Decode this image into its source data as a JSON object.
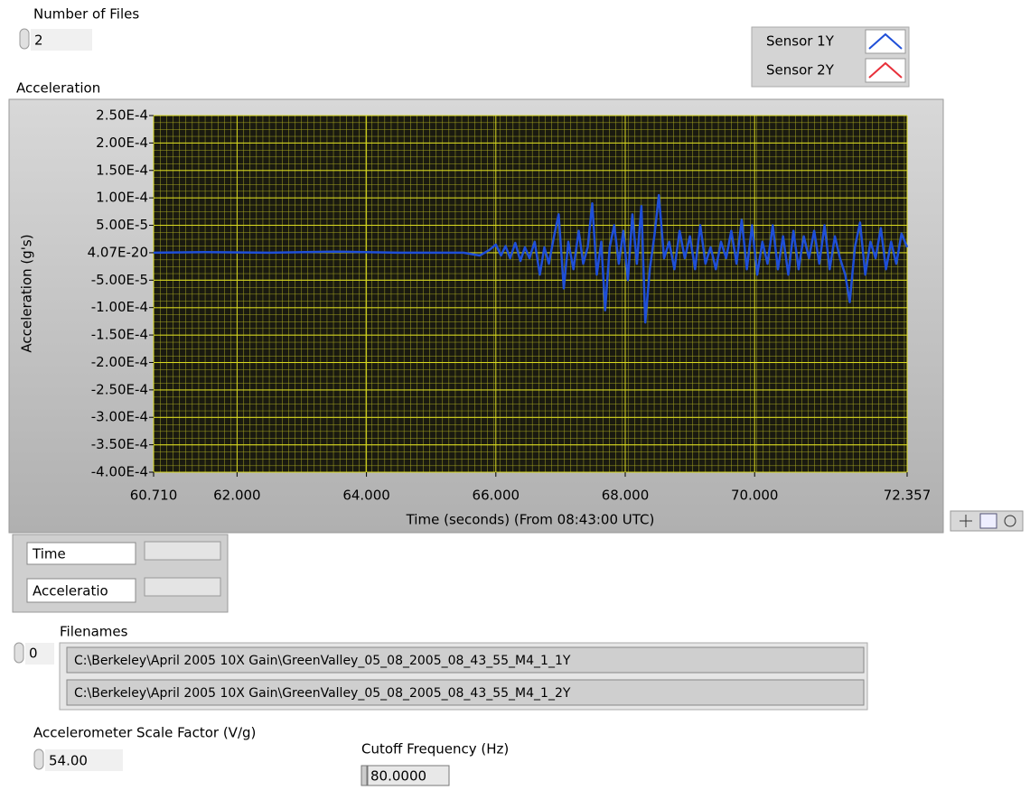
{
  "number_of_files": {
    "label": "Number of Files",
    "value": "2"
  },
  "chart_data": {
    "type": "line",
    "title": "Acceleration",
    "x_label": "Time (seconds) (From 08:43:00 UTC)",
    "y_label": "Acceleration (g's)",
    "xlim": [
      60.71,
      72.357
    ],
    "ylim": [
      -0.0004,
      0.00025
    ],
    "xticks": [
      {
        "value": 60.71,
        "label": "60.710"
      },
      {
        "value": 62,
        "label": "62.000"
      },
      {
        "value": 64,
        "label": "64.000"
      },
      {
        "value": 66,
        "label": "66.000"
      },
      {
        "value": 68,
        "label": "68.000"
      },
      {
        "value": 70,
        "label": "70.000"
      },
      {
        "value": 72.357,
        "label": "72.357"
      }
    ],
    "yticks": [
      {
        "value": 0.00025,
        "label": "2.50E-4"
      },
      {
        "value": 0.0002,
        "label": "2.00E-4"
      },
      {
        "value": 0.00015,
        "label": "1.50E-4"
      },
      {
        "value": 0.0001,
        "label": "1.00E-4"
      },
      {
        "value": 5e-05,
        "label": "5.00E-5"
      },
      {
        "value": 4.07e-20,
        "label": "4.07E-20"
      },
      {
        "value": -5e-05,
        "label": "-5.00E-5"
      },
      {
        "value": -0.0001,
        "label": "-1.00E-4"
      },
      {
        "value": -0.00015,
        "label": "-1.50E-4"
      },
      {
        "value": -0.0002,
        "label": "-2.00E-4"
      },
      {
        "value": -0.00025,
        "label": "-2.50E-4"
      },
      {
        "value": -0.0003,
        "label": "-3.00E-4"
      },
      {
        "value": -0.00035,
        "label": "-3.50E-4"
      },
      {
        "value": -0.0004,
        "label": "-4.00E-4"
      }
    ],
    "grid": true,
    "series": [
      {
        "name": "Sensor 1Y",
        "color": "#1f4fd8",
        "x": [
          60.71,
          61.5,
          62.5,
          63.5,
          64.5,
          65.5,
          65.75,
          65.9,
          66.0,
          66.08,
          66.15,
          66.22,
          66.3,
          66.38,
          66.45,
          66.52,
          66.6,
          66.68,
          66.75,
          66.82,
          66.9,
          66.97,
          67.05,
          67.12,
          67.2,
          67.28,
          67.35,
          67.42,
          67.49,
          67.56,
          67.63,
          67.69,
          67.76,
          67.83,
          67.9,
          67.97,
          68.04,
          68.11,
          68.18,
          68.25,
          68.31,
          68.38,
          68.45,
          68.52,
          68.6,
          68.68,
          68.76,
          68.84,
          68.92,
          69.0,
          69.08,
          69.16,
          69.24,
          69.32,
          69.4,
          69.48,
          69.56,
          69.64,
          69.72,
          69.8,
          69.88,
          69.96,
          70.04,
          70.12,
          70.2,
          70.28,
          70.36,
          70.44,
          70.52,
          70.6,
          70.68,
          70.76,
          70.84,
          70.92,
          71.0,
          71.08,
          71.16,
          71.24,
          71.32,
          71.4,
          71.47,
          71.55,
          71.63,
          71.71,
          71.79,
          71.87,
          71.95,
          72.03,
          72.11,
          72.19,
          72.27,
          72.357
        ],
        "values": [
          0,
          1e-06,
          0,
          2e-06,
          0,
          0,
          -5e-06,
          5e-06,
          1.5e-05,
          -5e-06,
          1.2e-05,
          -1e-05,
          1.8e-05,
          -1.5e-05,
          1e-05,
          -1e-05,
          2e-05,
          -4e-05,
          1e-05,
          -2e-05,
          3e-05,
          7e-05,
          -6.5e-05,
          2e-05,
          -3e-05,
          4e-05,
          -2e-05,
          1e-05,
          9e-05,
          -4e-05,
          2e-05,
          -0.000105,
          1e-05,
          5e-05,
          -2e-05,
          4e-05,
          -5e-05,
          7e-05,
          -2e-05,
          8.5e-05,
          -0.000127,
          -3e-05,
          3e-05,
          0.000105,
          -1e-05,
          2e-05,
          -3e-05,
          4e-05,
          -1e-05,
          3e-05,
          -3e-05,
          5e-05,
          -2e-05,
          1e-05,
          -3e-05,
          2e-05,
          -1e-05,
          4e-05,
          -2e-05,
          6e-05,
          -3e-05,
          5e-05,
          -4e-05,
          2e-05,
          -2e-05,
          5e-05,
          -3e-05,
          3e-05,
          -4e-05,
          4e-05,
          -3e-05,
          3e-05,
          -1e-05,
          4e-05,
          -2e-05,
          5e-05,
          -3e-05,
          3e-05,
          -1e-05,
          -4e-05,
          -9e-05,
          1e-05,
          5.5e-05,
          -4e-05,
          2e-05,
          -1e-05,
          4.5e-05,
          -3e-05,
          2e-05,
          -2e-05,
          3.5e-05,
          1e-05
        ]
      },
      {
        "name": "Sensor 2Y",
        "color": "#e8303a",
        "x": [],
        "values": []
      }
    ]
  },
  "scale_legend": {
    "rows": [
      "Time",
      "Acceleratio"
    ]
  },
  "filenames": {
    "label": "Filenames",
    "index": "0",
    "items": [
      "C:\\Berkeley\\April 2005 10X Gain\\GreenValley_05_08_2005_08_43_55_M4_1_1Y",
      "C:\\Berkeley\\April 2005 10X Gain\\GreenValley_05_08_2005_08_43_55_M4_1_2Y"
    ]
  },
  "scale_factor": {
    "label": "Accelerometer Scale Factor (V/g)",
    "value": "54.00"
  },
  "cutoff_frequency": {
    "label": "Cutoff Frequency (Hz)",
    "value": "80.0000"
  }
}
